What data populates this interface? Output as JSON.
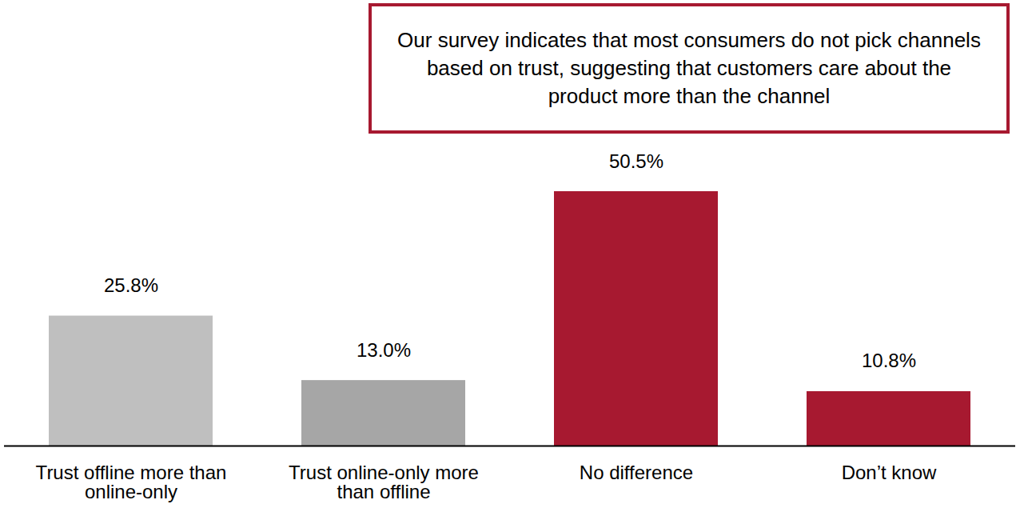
{
  "chart_data": {
    "type": "bar",
    "annotation": "Our survey indicates that most consumers do not pick channels based on trust, suggesting that customers care about the product more than the channel",
    "categories": [
      "Trust offline more than online-only",
      "Trust online-only more than offline",
      "No difference",
      "Don’t know"
    ],
    "values": [
      25.8,
      13.0,
      50.5,
      10.8
    ],
    "value_labels": [
      "25.8%",
      "13.0%",
      "50.5%",
      "10.8%"
    ],
    "colors": [
      "#bfbfbf",
      "#a6a6a6",
      "#a71930",
      "#a71930"
    ],
    "ylim": [
      0,
      50.5
    ],
    "data_labels": true,
    "tick_labels": "x"
  }
}
